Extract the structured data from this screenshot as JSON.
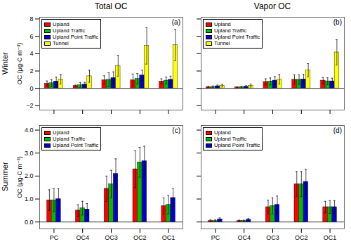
{
  "chart_data": [
    {
      "type": "bar",
      "title": "Total OC",
      "row_label": "Winter",
      "ylabel": "OC (μg-C m⁻³)",
      "annotations": [
        "(a)"
      ],
      "categories": [
        "PC",
        "OC4",
        "OC3",
        "OC2",
        "OC1"
      ],
      "series": [
        {
          "name": "Upland",
          "color": "#FF0000",
          "values": [
            0.55,
            0.28,
            0.95,
            0.95,
            0.8
          ],
          "errors": [
            0.3,
            0.1,
            0.5,
            0.7,
            0.3
          ]
        },
        {
          "name": "Upland Traffic",
          "color": "#00BB00",
          "values": [
            0.6,
            0.38,
            1.0,
            1.1,
            0.9
          ],
          "errors": [
            0.4,
            0.3,
            0.8,
            0.6,
            0.4
          ]
        },
        {
          "name": "Upland Point Traffic",
          "color": "#0000CC",
          "values": [
            0.8,
            0.45,
            1.2,
            1.5,
            1.0
          ],
          "errors": [
            0.5,
            0.25,
            0.7,
            0.6,
            0.4
          ]
        },
        {
          "name": "Tunnel",
          "color": "#FFFF00",
          "values": [
            1.05,
            1.4,
            2.6,
            4.9,
            5.0
          ],
          "errors": [
            0.55,
            0.7,
            1.2,
            2.1,
            1.8
          ]
        }
      ],
      "ylim": [
        -2.5,
        8.2
      ],
      "yticks": [
        -2,
        0,
        2,
        4,
        6,
        8
      ],
      "legend": "upper left",
      "tick_labels": "y"
    },
    {
      "type": "bar",
      "title": "Vapor OC",
      "annotations": [
        "(b)"
      ],
      "categories": [
        "PC",
        "OC4",
        "OC3",
        "OC2",
        "OC1"
      ],
      "series": [
        {
          "name": "Upland",
          "color": "#FF0000",
          "values": [
            0.15,
            0.12,
            0.75,
            1.0,
            0.9
          ],
          "errors": [
            0.08,
            0.06,
            0.35,
            0.55,
            0.35
          ]
        },
        {
          "name": "Upland Traffic",
          "color": "#00BB00",
          "values": [
            0.18,
            0.15,
            0.8,
            1.0,
            0.82
          ],
          "errors": [
            0.1,
            0.08,
            0.4,
            0.55,
            0.4
          ]
        },
        {
          "name": "Upland Point Traffic",
          "color": "#0000CC",
          "values": [
            0.25,
            0.2,
            0.9,
            1.05,
            0.82
          ],
          "errors": [
            0.12,
            0.1,
            0.45,
            0.55,
            0.35
          ]
        },
        {
          "name": "Tunnel",
          "color": "#FFFF00",
          "values": [
            0.3,
            0.32,
            1.05,
            2.1,
            4.15
          ],
          "errors": [
            0.15,
            0.18,
            0.55,
            0.75,
            1.45
          ]
        }
      ],
      "ylim": [
        -2.5,
        8.2
      ],
      "yticks": [
        -2,
        0,
        2,
        4,
        6,
        8
      ],
      "legend": "upper left",
      "tick_labels": false
    },
    {
      "type": "bar",
      "row_label": "Summer",
      "ylabel": "OC (μg-C m⁻³)",
      "annotations": [
        "(c)"
      ],
      "categories": [
        "PC",
        "OC4",
        "OC3",
        "OC2",
        "OC1"
      ],
      "series": [
        {
          "name": "Upland",
          "color": "#FF0000",
          "values": [
            0.95,
            0.5,
            1.45,
            2.3,
            0.7
          ],
          "errors": [
            0.45,
            0.25,
            0.55,
            0.8,
            0.35
          ]
        },
        {
          "name": "Upland Traffic",
          "color": "#00BB00",
          "values": [
            0.95,
            0.6,
            1.65,
            2.6,
            0.75
          ],
          "errors": [
            0.5,
            0.3,
            0.6,
            0.65,
            0.4
          ]
        },
        {
          "name": "Upland Point Traffic",
          "color": "#0000CC",
          "values": [
            1.0,
            0.55,
            2.1,
            2.65,
            1.05
          ],
          "errors": [
            0.45,
            0.25,
            0.65,
            0.65,
            0.4
          ]
        }
      ],
      "ylim": [
        -0.3,
        4.2
      ],
      "yticks": [
        0,
        1,
        2,
        3,
        4
      ],
      "legend": "upper left"
    },
    {
      "type": "bar",
      "annotations": [
        "(d)"
      ],
      "categories": [
        "PC",
        "OC4",
        "OC3",
        "OC2",
        "OC1"
      ],
      "series": [
        {
          "name": "Upland",
          "color": "#FF0000",
          "values": [
            0.05,
            0.05,
            0.65,
            1.65,
            0.65
          ],
          "errors": [
            0.04,
            0.03,
            0.3,
            0.55,
            0.25
          ]
        },
        {
          "name": "Upland Traffic",
          "color": "#00BB00",
          "values": [
            0.05,
            0.05,
            0.7,
            1.65,
            0.65
          ],
          "errors": [
            0.04,
            0.03,
            0.35,
            0.55,
            0.28
          ]
        },
        {
          "name": "Upland Point Traffic",
          "color": "#0000CC",
          "values": [
            0.12,
            0.1,
            0.75,
            1.75,
            0.65
          ],
          "errors": [
            0.06,
            0.05,
            0.38,
            0.55,
            0.28
          ]
        }
      ],
      "ylim": [
        -0.3,
        4.2
      ],
      "yticks": [
        0,
        1,
        2,
        3,
        4
      ],
      "legend": "upper left",
      "tick_labels": "x"
    }
  ]
}
